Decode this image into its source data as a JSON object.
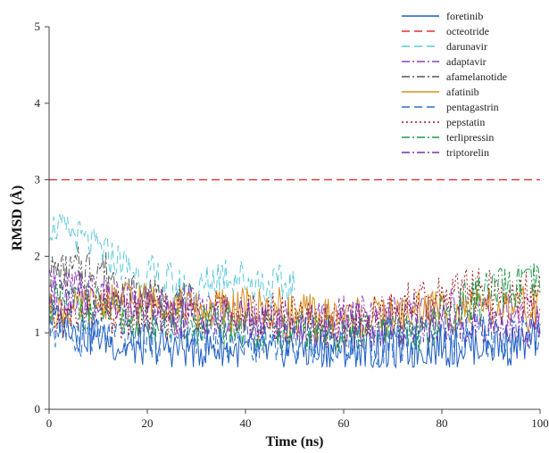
{
  "chart_data": {
    "type": "line",
    "xlabel": "Time (ns)",
    "ylabel": "RMSD (Å)",
    "xlim": [
      0,
      100
    ],
    "ylim": [
      0,
      5
    ],
    "xticks": [
      0,
      20,
      40,
      60,
      80,
      100
    ],
    "yticks": [
      0,
      1,
      2,
      3,
      4,
      5
    ],
    "grid": false,
    "legend_position": "top-right",
    "x": [
      0,
      5,
      10,
      15,
      20,
      25,
      30,
      35,
      40,
      45,
      50,
      55,
      60,
      65,
      70,
      75,
      80,
      85,
      90,
      95,
      100
    ],
    "series": [
      {
        "name": "foretinib",
        "color": "#1f5fbf",
        "dash": "solid",
        "values": [
          1.2,
          1.1,
          0.95,
          0.8,
          0.85,
          0.8,
          0.8,
          0.8,
          0.75,
          0.75,
          0.8,
          0.8,
          0.75,
          0.8,
          0.8,
          0.8,
          0.85,
          0.85,
          0.85,
          0.85,
          0.9
        ]
      },
      {
        "name": "octeotride",
        "color": "#e03030",
        "dash": "dashed",
        "values": [
          3.0,
          3.0,
          3.0,
          3.0,
          3.0,
          3.0,
          3.0,
          3.0,
          3.0,
          3.0,
          3.0,
          3.0,
          3.0,
          3.0,
          3.0,
          3.0,
          3.0,
          3.0,
          3.0,
          3.0,
          3.0
        ]
      },
      {
        "name": "darunavir",
        "color": "#5bc8dc",
        "dash": "dashed",
        "values": [
          2.4,
          2.3,
          2.1,
          1.9,
          1.7,
          1.6,
          1.5,
          1.8,
          1.7,
          1.6,
          1.6,
          null,
          null,
          null,
          null,
          null,
          null,
          null,
          null,
          null,
          null
        ]
      },
      {
        "name": "adaptavir",
        "color": "#8e3fbf",
        "dash": "dashdot",
        "values": [
          1.6,
          1.6,
          1.5,
          1.4,
          1.4,
          1.3,
          1.3,
          1.2,
          1.2,
          1.2,
          1.2,
          1.2,
          1.2,
          1.3,
          1.3,
          1.3,
          1.3,
          1.3,
          1.3,
          1.3,
          1.3
        ]
      },
      {
        "name": "afamelanotide",
        "color": "#555555",
        "dash": "dashdot",
        "values": [
          1.8,
          1.8,
          1.9,
          1.6,
          1.5,
          1.4,
          1.4,
          null,
          null,
          null,
          null,
          null,
          null,
          null,
          null,
          null,
          null,
          null,
          null,
          null,
          null
        ]
      },
      {
        "name": "afatinib",
        "color": "#d9901a",
        "dash": "solid",
        "values": [
          1.3,
          1.3,
          1.4,
          1.4,
          1.4,
          1.4,
          1.3,
          1.3,
          1.3,
          1.3,
          1.2,
          1.2,
          1.2,
          1.2,
          1.2,
          1.3,
          1.3,
          1.3,
          1.3,
          1.3,
          1.3
        ]
      },
      {
        "name": "pentagastrin",
        "color": "#2a6fd0",
        "dash": "dashed",
        "values": [
          1.1,
          1.0,
          1.0,
          0.95,
          0.95,
          0.95,
          0.95,
          0.9,
          0.9,
          0.9,
          0.9,
          0.9,
          0.9,
          0.9,
          0.9,
          0.9,
          0.9,
          0.95,
          0.95,
          0.95,
          0.95
        ]
      },
      {
        "name": "pepstatin",
        "color": "#a01818",
        "dash": "dotted",
        "values": [
          1.1,
          1.2,
          1.3,
          1.2,
          1.2,
          1.2,
          1.3,
          1.3,
          1.2,
          1.2,
          1.2,
          1.1,
          1.1,
          1.2,
          1.3,
          1.4,
          1.5,
          1.6,
          1.5,
          1.5,
          1.5
        ]
      },
      {
        "name": "terlipressin",
        "color": "#1e9a4a",
        "dash": "dashdot",
        "values": [
          1.4,
          1.4,
          1.3,
          1.2,
          1.1,
          1.1,
          1.1,
          1.1,
          1.1,
          1.0,
          1.0,
          1.0,
          1.0,
          1.0,
          1.0,
          1.0,
          1.2,
          1.4,
          1.5,
          1.6,
          1.6
        ]
      },
      {
        "name": "triptorelin",
        "color": "#7b2fb0",
        "dash": "dashdot",
        "values": [
          1.5,
          1.5,
          1.4,
          1.3,
          1.3,
          1.2,
          1.2,
          1.2,
          1.2,
          1.1,
          1.1,
          1.1,
          1.1,
          1.1,
          1.1,
          1.1,
          1.1,
          1.1,
          1.1,
          1.1,
          1.0
        ]
      }
    ]
  }
}
